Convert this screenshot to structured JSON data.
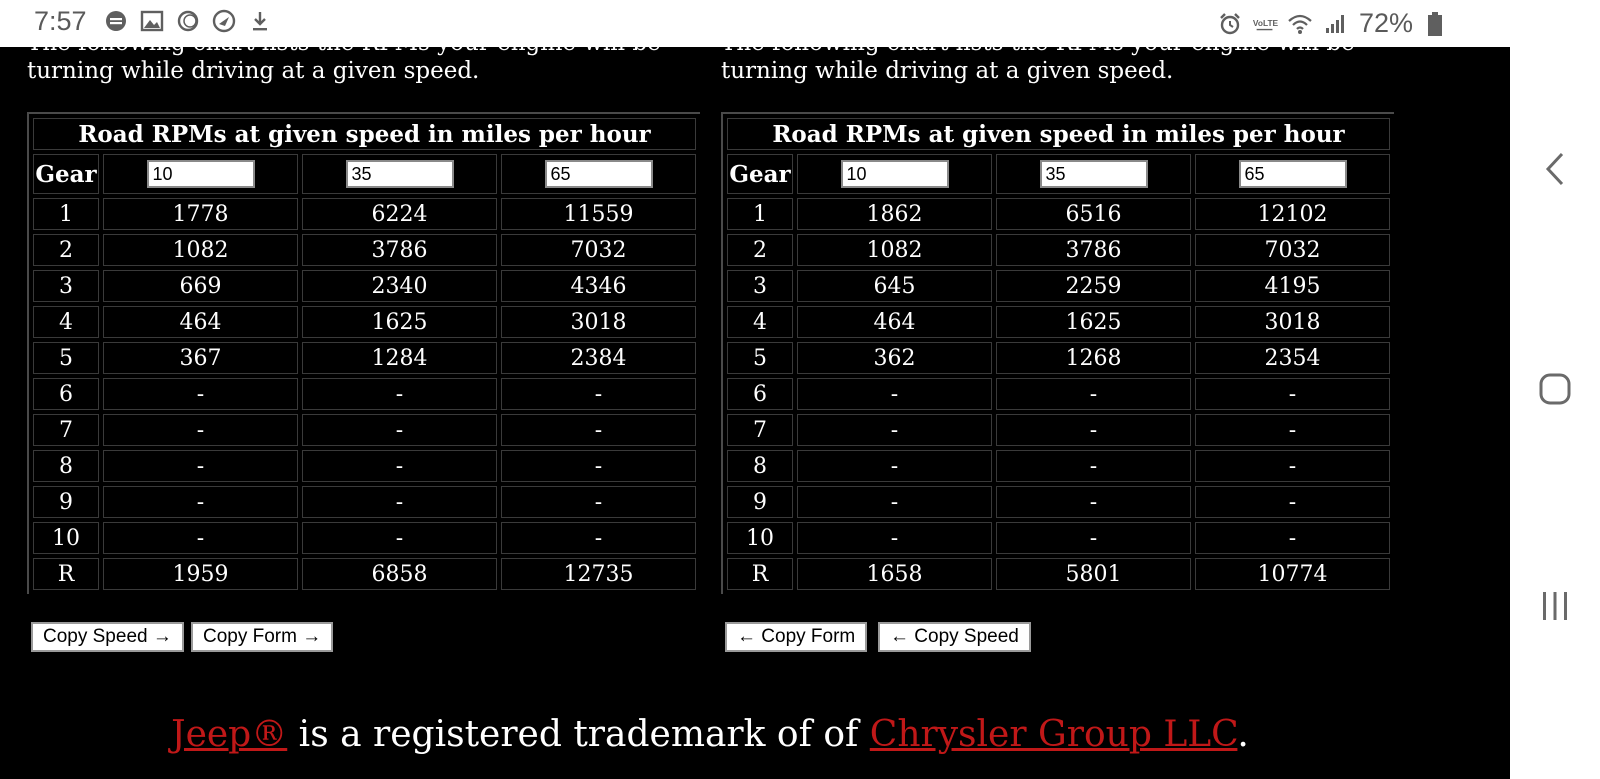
{
  "status_bar": {
    "time": "7:57",
    "battery": "72%",
    "left_icons": [
      "sync-icon",
      "image-icon",
      "loading-icon",
      "navigation-icon",
      "download-icon"
    ],
    "right_icons": [
      "alarm-icon",
      "volte-icon",
      "wifi-icon",
      "signal-icon",
      "battery-icon"
    ]
  },
  "intro_text": "The following chart lists the RPMs your engine will be turning while driving at a given speed.",
  "tables": [
    {
      "title": "Road RPMs at given speed in miles per hour",
      "gear_header": "Gear",
      "speeds": [
        "10",
        "35",
        "65"
      ],
      "rows": [
        {
          "gear": "1",
          "values": [
            "1778",
            "6224",
            "11559"
          ]
        },
        {
          "gear": "2",
          "values": [
            "1082",
            "3786",
            "7032"
          ]
        },
        {
          "gear": "3",
          "values": [
            "669",
            "2340",
            "4346"
          ]
        },
        {
          "gear": "4",
          "values": [
            "464",
            "1625",
            "3018"
          ]
        },
        {
          "gear": "5",
          "values": [
            "367",
            "1284",
            "2384"
          ]
        },
        {
          "gear": "6",
          "values": [
            "-",
            "-",
            "-"
          ]
        },
        {
          "gear": "7",
          "values": [
            "-",
            "-",
            "-"
          ]
        },
        {
          "gear": "8",
          "values": [
            "-",
            "-",
            "-"
          ]
        },
        {
          "gear": "9",
          "values": [
            "-",
            "-",
            "-"
          ]
        },
        {
          "gear": "10",
          "values": [
            "-",
            "-",
            "-"
          ]
        },
        {
          "gear": "R",
          "values": [
            "1959",
            "6858",
            "12735"
          ]
        }
      ]
    },
    {
      "title": "Road RPMs at given speed in miles per hour",
      "gear_header": "Gear",
      "speeds": [
        "10",
        "35",
        "65"
      ],
      "rows": [
        {
          "gear": "1",
          "values": [
            "1862",
            "6516",
            "12102"
          ]
        },
        {
          "gear": "2",
          "values": [
            "1082",
            "3786",
            "7032"
          ]
        },
        {
          "gear": "3",
          "values": [
            "645",
            "2259",
            "4195"
          ]
        },
        {
          "gear": "4",
          "values": [
            "464",
            "1625",
            "3018"
          ]
        },
        {
          "gear": "5",
          "values": [
            "362",
            "1268",
            "2354"
          ]
        },
        {
          "gear": "6",
          "values": [
            "-",
            "-",
            "-"
          ]
        },
        {
          "gear": "7",
          "values": [
            "-",
            "-",
            "-"
          ]
        },
        {
          "gear": "8",
          "values": [
            "-",
            "-",
            "-"
          ]
        },
        {
          "gear": "9",
          "values": [
            "-",
            "-",
            "-"
          ]
        },
        {
          "gear": "10",
          "values": [
            "-",
            "-",
            "-"
          ]
        },
        {
          "gear": "R",
          "values": [
            "1658",
            "5801",
            "10774"
          ]
        }
      ]
    }
  ],
  "buttons": {
    "left_copy_speed": "Copy Speed →",
    "left_copy_form": "Copy Form →",
    "right_copy_form": "← Copy Form",
    "right_copy_speed": "← Copy Speed"
  },
  "footer": {
    "link1": "Jeep®",
    "middle": " is a registered trademark of of ",
    "link2": "Chrysler Group LLC",
    "end": "."
  },
  "nav_bar": {
    "icons": [
      "back-icon",
      "home-icon",
      "recents-icon"
    ]
  },
  "colors": {
    "page_bg": "#000000",
    "link": "#c01818",
    "status_bar_bg": "#ffffff"
  }
}
